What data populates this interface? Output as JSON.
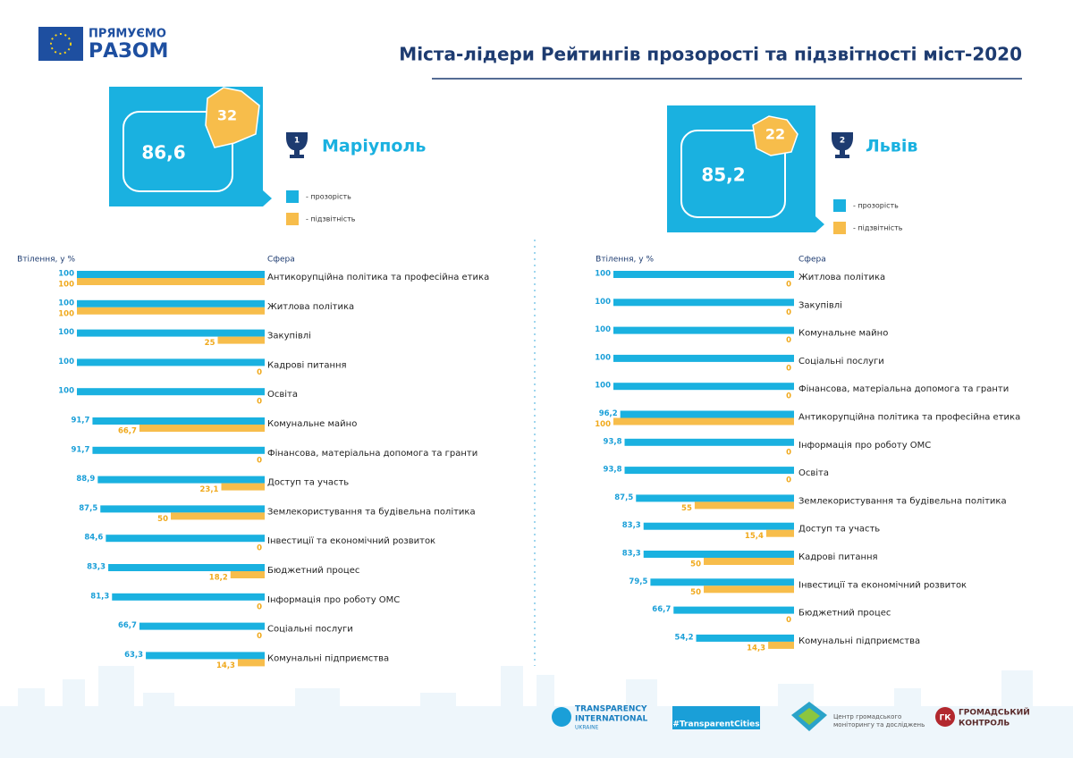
{
  "header": {
    "logo_top": "ПРЯМУЄМО",
    "logo_bottom": "РАЗОМ",
    "title": "Міста-лідери Рейтингів прозорості та підзвітності міст-2020"
  },
  "chart_data": [
    {
      "type": "bar",
      "city": "Маріуполь",
      "rank": 1,
      "scores": {
        "values": [
          86.6,
          32
        ],
        "value_labels": [
          "86,6",
          "32"
        ]
      },
      "x_label": "Втілення, у %",
      "category_header": "Сфера",
      "xlim": [
        0,
        100
      ],
      "categories": [
        "Антикорупційна політика та професійна етика",
        "Житлова політика",
        "Закупівлі",
        "Кадрові питання",
        "Освіта",
        "Комунальне майно",
        "Фінансова, матеріальна допомога та гранти",
        "Доступ та участь",
        "Землекористування та будівельна політика",
        "Інвестиції та економічний розвиток",
        "Бюджетний процес",
        "Інформація про роботу ОМС",
        "Соціальні послуги",
        "Комунальні підприємства"
      ],
      "series": [
        {
          "name": "- прозорість",
          "color": "#1ab1e0",
          "values": [
            100,
            100,
            100,
            100,
            100,
            91.7,
            91.7,
            88.9,
            87.5,
            84.6,
            83.3,
            81.3,
            66.7,
            63.3
          ],
          "value_labels": [
            "100",
            "100",
            "100",
            "100",
            "100",
            "91,7",
            "91,7",
            "88,9",
            "87,5",
            "84,6",
            "83,3",
            "81,3",
            "66,7",
            "63,3"
          ]
        },
        {
          "name": "- підзвітність",
          "color": "#f7bd4b",
          "values": [
            100,
            100,
            25,
            0,
            0,
            66.7,
            0,
            23.1,
            50,
            0,
            18.2,
            0,
            0,
            14.3
          ],
          "value_labels": [
            "100",
            "100",
            "25",
            "0",
            "0",
            "66,7",
            "0",
            "23,1",
            "50",
            "0",
            "18,2",
            "0",
            "0",
            "14,3"
          ]
        }
      ]
    },
    {
      "type": "bar",
      "city": "Львів",
      "rank": 2,
      "scores": {
        "values": [
          85.2,
          22
        ],
        "value_labels": [
          "85,2",
          "22"
        ]
      },
      "x_label": "Втілення, у %",
      "category_header": "Сфера",
      "xlim": [
        0,
        100
      ],
      "categories": [
        "Житлова політика",
        "Закупівлі",
        "Комунальне майно",
        "Соціальні послуги",
        "Фінансова, матеріальна допомога та гранти",
        "Антикорупційна політика та професійна етика",
        "Інформація про роботу ОМС",
        "Освіта",
        "Землекористування та будівельна політика",
        "Доступ та участь",
        "Кадрові питання",
        "Інвестиції та економічний розвиток",
        "Бюджетний процес",
        "Комунальні підприємства"
      ],
      "series": [
        {
          "name": "- прозорість",
          "color": "#1ab1e0",
          "values": [
            100,
            100,
            100,
            100,
            100,
            96.2,
            93.8,
            93.8,
            87.5,
            83.3,
            83.3,
            79.5,
            66.7,
            54.2
          ],
          "value_labels": [
            "100",
            "100",
            "100",
            "100",
            "100",
            "96,2",
            "93,8",
            "93,8",
            "87,5",
            "83,3",
            "83,3",
            "79,5",
            "66,7",
            "54,2"
          ]
        },
        {
          "name": "- підзвітність",
          "color": "#f7bd4b",
          "values": [
            0,
            0,
            0,
            0,
            0,
            100,
            0,
            0,
            55,
            15.4,
            50,
            50,
            0,
            14.3
          ],
          "value_labels": [
            "0",
            "0",
            "0",
            "0",
            "0",
            "100",
            "0",
            "0",
            "55",
            "15,4",
            "50",
            "50",
            "0",
            "14,3"
          ]
        }
      ]
    }
  ],
  "footer": {
    "ti_line1": "TRANSPARENCY",
    "ti_line2": "INTERNATIONAL",
    "ti_line3": "UKRAINE",
    "hashtag": "#TransparentCities",
    "center_line1": "Центр громадського",
    "center_line2": "моніторингу та досліджень",
    "gk_badge": "ГК",
    "gk_line1": "ГРОМАДСЬКИЙ",
    "gk_line2": "КОНТРОЛЬ"
  }
}
